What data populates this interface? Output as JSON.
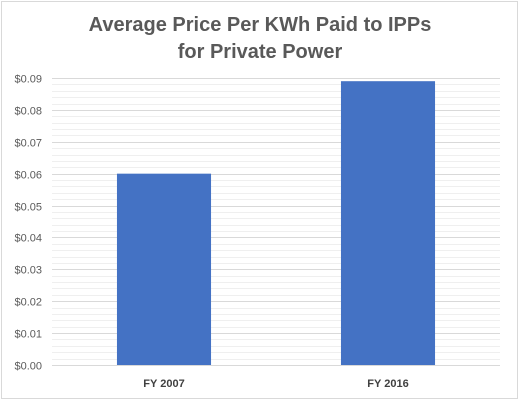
{
  "chart_data": {
    "type": "bar",
    "title_line1": "Average Price Per KWh Paid to IPPs",
    "title_line2": "for Private Power",
    "categories": [
      "FY 2007",
      "FY 2016"
    ],
    "values": [
      0.06,
      0.089
    ],
    "ylim": [
      0,
      0.09
    ],
    "yticks": [
      0,
      0.01,
      0.02,
      0.03,
      0.04,
      0.05,
      0.06,
      0.07,
      0.08,
      0.09
    ],
    "ytick_labels": [
      "$0.00",
      "$0.01",
      "$0.02",
      "$0.03",
      "$0.04",
      "$0.05",
      "$0.06",
      "$0.07",
      "$0.08",
      "$0.09"
    ],
    "minor_step": 0.002,
    "grid": true,
    "legend": "none",
    "colors": {
      "bar": "#4472c4",
      "major_grid": "#d9d9d9",
      "minor_grid": "#efefef",
      "axis": "#d9d9d9"
    }
  }
}
